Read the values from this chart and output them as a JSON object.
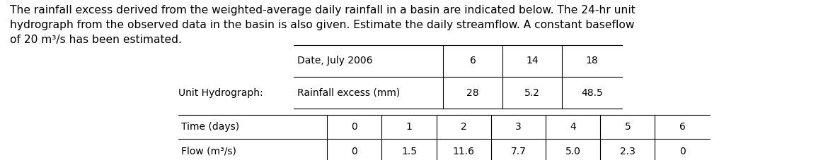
{
  "paragraph": "The rainfall excess derived from the weighted-average daily rainfall in a basin are indicated below. The 24-hr unit\nhydrograph from the observed data in the basin is also given. Estimate the daily streamflow. A constant baseflow\nof 20 m³/s has been estimated.",
  "table1_title": "Date, July 2006",
  "table1_header": [
    "6",
    "14",
    "18"
  ],
  "table1_row_label": "Rainfall excess (mm)",
  "table1_row": [
    "28",
    "5.2",
    "48.5"
  ],
  "table2_title": "Unit Hydrograph:",
  "table2_row1_label": "Time (days)",
  "table2_row1": [
    "0",
    "1",
    "2",
    "3",
    "4",
    "5",
    "6"
  ],
  "table2_row2_label": "Flow (m³/s)",
  "table2_row2": [
    "0",
    "1.5",
    "11.6",
    "7.7",
    "5.0",
    "2.3",
    "0"
  ],
  "bg_color": "#ffffff",
  "text_color": "#000000",
  "font_size_para": 11.2,
  "font_size_table": 10.0
}
